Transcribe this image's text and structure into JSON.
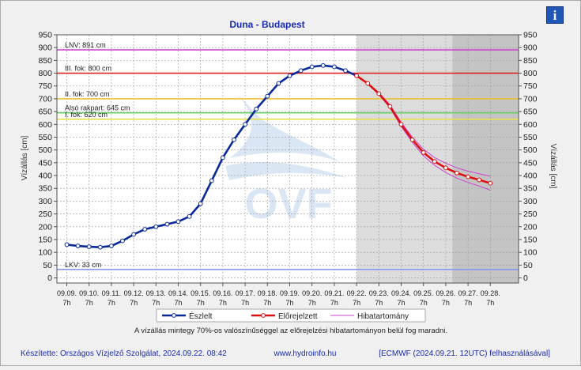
{
  "chart_data": {
    "type": "line",
    "title": "Duna - Budapest",
    "ylabel": "Vízállás [cm]",
    "ylabel_right": "Vízállás [cm]",
    "ylim": [
      -20,
      950
    ],
    "yticks": [
      0,
      50,
      100,
      150,
      200,
      250,
      300,
      350,
      400,
      450,
      500,
      550,
      600,
      650,
      700,
      750,
      800,
      850,
      900,
      950
    ],
    "x_categories": [
      "09.09.",
      "09.10.",
      "09.11.",
      "09.12.",
      "09.13.",
      "09.14.",
      "09.15.",
      "09.16.",
      "09.17.",
      "09.18.",
      "09.19.",
      "09.20.",
      "09.21.",
      "09.22.",
      "09.23.",
      "09.24.",
      "09.25.",
      "09.26.",
      "09.27.",
      "09.28."
    ],
    "x_sublabel": "7h",
    "reference_lines": [
      {
        "label": "LNV: 891 cm",
        "value": 891,
        "color": "#cc44cc"
      },
      {
        "label": "III. fok: 800 cm",
        "value": 800,
        "color": "#dd2222"
      },
      {
        "label": "II. fok: 700 cm",
        "value": 700,
        "color": "#e8c030"
      },
      {
        "label": "Alsó rakpart: 645 cm",
        "value": 645,
        "color": "#6ccf6c"
      },
      {
        "label": "I. fok: 620 cm",
        "value": 620,
        "color": "#e8e050"
      },
      {
        "label": "LKV: 33 cm",
        "value": 33,
        "color": "#8899ee"
      }
    ],
    "series": [
      {
        "name": "Észlelt",
        "color": "#0a2a9a",
        "x": [
          0,
          0.5,
          1,
          1.5,
          2,
          2.5,
          3,
          3.5,
          4,
          4.5,
          5,
          5.5,
          6,
          6.5,
          7,
          7.5,
          8,
          8.5,
          9,
          9.5,
          10,
          10.5,
          11,
          11.5,
          12,
          12.5,
          13
        ],
        "values": [
          130,
          125,
          122,
          120,
          125,
          145,
          170,
          190,
          200,
          210,
          220,
          240,
          290,
          380,
          470,
          540,
          600,
          660,
          710,
          760,
          790,
          810,
          825,
          830,
          825,
          810,
          790
        ]
      },
      {
        "name": "Előrejelzett",
        "color": "#dd1111",
        "x": [
          13,
          13.5,
          14,
          14.5,
          15,
          15.5,
          16,
          16.5,
          17,
          17.5,
          18,
          18.5,
          19
        ],
        "values": [
          790,
          760,
          720,
          670,
          600,
          540,
          490,
          455,
          430,
          410,
          395,
          383,
          370
        ]
      },
      {
        "name": "Hibatartomány",
        "color": "#cc44cc",
        "x": [
          13,
          13.5,
          14,
          14.5,
          15,
          15.5,
          16,
          16.5,
          17,
          17.5,
          18,
          18.5,
          19
        ],
        "upper": [
          790,
          762,
          724,
          676,
          608,
          550,
          503,
          470,
          448,
          430,
          417,
          407,
          397
        ],
        "lower": [
          790,
          758,
          716,
          664,
          592,
          530,
          477,
          440,
          412,
          390,
          373,
          359,
          343
        ]
      }
    ],
    "watermark": "OVF",
    "note": "A vízállás mintegy 70%-os valószínűséggel az előrejelzési hibatartományon belül fog maradni.",
    "footer_left": "Készítette: Országos Vízjelző Szolgálat, 2024.09.22. 08:42",
    "footer_mid": "www.hydroinfo.hu",
    "footer_right": "[ECMWF (2024.09.21. 12UTC) felhasználásával]",
    "info_icon": "info-icon"
  }
}
